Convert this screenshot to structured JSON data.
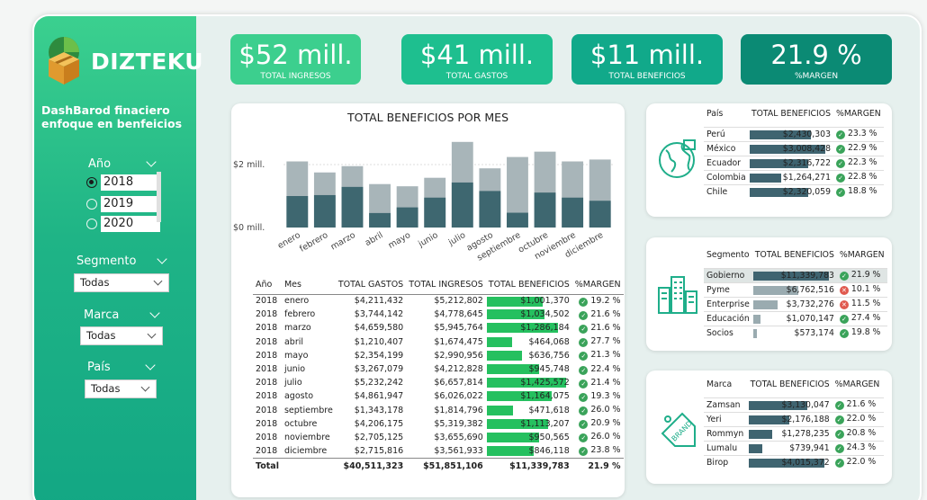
{
  "brand": {
    "name": "DIZTEKU",
    "tagline": "DashBarod finaciero enfoque en  benfeicios"
  },
  "filters": {
    "year": {
      "label": "Año",
      "options": [
        "2018",
        "2019",
        "2020"
      ],
      "selected": "2018"
    },
    "segment": {
      "label": "Segmento",
      "value": "Todas"
    },
    "brand": {
      "label": "Marca",
      "value": "Todas"
    },
    "country": {
      "label": "País",
      "value": "Todas"
    }
  },
  "kpis": [
    {
      "value": "$52 mill.",
      "label": "TOTAL INGRESOS",
      "color": "#3ccf8e"
    },
    {
      "value": "$41 mill.",
      "label": "TOTAL GASTOS",
      "color": "#1ebf8f"
    },
    {
      "value": "$11 mill.",
      "label": "TOTAL BENEFICIOS",
      "color": "#11a98a"
    },
    {
      "value": "21.9 %",
      "label": "%MARGEN",
      "color": "#0b8a74"
    }
  ],
  "chart_data": {
    "type": "bar",
    "title": "TOTAL BENEFICIOS POR MES",
    "categories": [
      "enero",
      "febrero",
      "marzo",
      "abril",
      "mayo",
      "junio",
      "julio",
      "agosto",
      "septiembre",
      "octubre",
      "noviembre",
      "diciembre"
    ],
    "series": [
      {
        "values": [
          1.0,
          1.03,
          1.29,
          0.46,
          0.64,
          0.95,
          1.43,
          1.16,
          0.47,
          1.11,
          0.95,
          0.85
        ]
      },
      {
        "values": [
          2.1,
          1.75,
          1.95,
          1.38,
          1.31,
          1.58,
          2.72,
          1.88,
          2.24,
          2.41,
          2.1,
          2.16
        ]
      }
    ],
    "yticks": [
      "$0 mill.",
      "$2 mill."
    ],
    "ylim": [
      0,
      2.8
    ],
    "colors": [
      "#3e6770",
      "#a8b5b9"
    ]
  },
  "month_table": {
    "headers": [
      "Año",
      "Mes",
      "TOTAL GASTOS",
      "TOTAL INGRESOS",
      "TOTAL BENEFICIOS",
      "%MARGEN"
    ],
    "rows": [
      [
        "2018",
        "enero",
        "$4,211,432",
        "$5,212,802",
        "$1,001,370",
        "19.2 %",
        1.00137
      ],
      [
        "2018",
        "febrero",
        "$3,744,142",
        "$4,778,645",
        "$1,034,502",
        "21.6 %",
        1.034502
      ],
      [
        "2018",
        "marzo",
        "$4,659,580",
        "$5,945,764",
        "$1,286,184",
        "21.6 %",
        1.286184
      ],
      [
        "2018",
        "abril",
        "$1,210,407",
        "$1,674,475",
        "$464,068",
        "27.7 %",
        0.464068
      ],
      [
        "2018",
        "mayo",
        "$2,354,199",
        "$2,990,956",
        "$636,756",
        "21.3 %",
        0.636756
      ],
      [
        "2018",
        "junio",
        "$3,267,079",
        "$4,212,828",
        "$945,748",
        "22.4 %",
        0.945748
      ],
      [
        "2018",
        "julio",
        "$5,232,242",
        "$6,657,814",
        "$1,425,572",
        "21.4 %",
        1.425572
      ],
      [
        "2018",
        "agosto",
        "$4,861,947",
        "$6,026,022",
        "$1,164,075",
        "19.3 %",
        1.164075
      ],
      [
        "2018",
        "septiembre",
        "$1,343,178",
        "$1,814,796",
        "$471,618",
        "26.0 %",
        0.471618
      ],
      [
        "2018",
        "octubre",
        "$4,206,175",
        "$5,319,382",
        "$1,113,207",
        "20.9 %",
        1.113207
      ],
      [
        "2018",
        "noviembre",
        "$2,705,125",
        "$3,655,690",
        "$950,565",
        "26.0 %",
        0.950565
      ],
      [
        "2018",
        "diciembre",
        "$2,715,816",
        "$3,561,933",
        "$846,118",
        "23.8 %",
        0.846118
      ]
    ],
    "total": [
      "Total",
      "$40,511,323",
      "$51,851,106",
      "$11,339,783",
      "21.9 %"
    ]
  },
  "country_table": {
    "headers": [
      "País",
      "TOTAL BENEFICIOS",
      "%MARGEN"
    ],
    "rows": [
      [
        "Perú",
        "$2,430,303",
        "23.3 %",
        2.430303,
        "ok"
      ],
      [
        "México",
        "$3,008,428",
        "22.9 %",
        3.008428,
        "ok"
      ],
      [
        "Ecuador",
        "$2,316,722",
        "22.3 %",
        2.316722,
        "ok"
      ],
      [
        "Colombia",
        "$1,264,271",
        "22.8 %",
        1.264271,
        "ok"
      ],
      [
        "Chile",
        "$2,320,059",
        "18.8 %",
        2.320059,
        "ok"
      ]
    ]
  },
  "segment_table": {
    "headers": [
      "Segmento",
      "TOTAL BENEFICIOS",
      "%MARGEN"
    ],
    "rows": [
      [
        "Gobierno",
        "$11,339,783",
        "21.9 %",
        11.339783,
        "ok"
      ],
      [
        "Pyme",
        "$6,762,516",
        "10.1 %",
        6.762516,
        "bad"
      ],
      [
        "Enterprise",
        "$3,732,276",
        "11.5 %",
        3.732276,
        "bad"
      ],
      [
        "Educación",
        "$1,070,147",
        "27.4 %",
        1.070147,
        "ok"
      ],
      [
        "Socios",
        "$573,174",
        "19.8 %",
        0.573174,
        "ok"
      ]
    ]
  },
  "brand_table": {
    "headers": [
      "Marca",
      "TOTAL BENEFICIOS",
      "%MARGEN"
    ],
    "rows": [
      [
        "Zamsan",
        "$3,130,047",
        "21.6 %",
        3.130047,
        "ok"
      ],
      [
        "Yeri",
        "$2,176,188",
        "22.0 %",
        2.176188,
        "ok"
      ],
      [
        "Rommyn",
        "$1,278,235",
        "20.8 %",
        1.278235,
        "ok"
      ],
      [
        "Lumalu",
        "$739,941",
        "24.3 %",
        0.739941,
        "ok"
      ],
      [
        "Birop",
        "$4,015,372",
        "22.0 %",
        4.015372,
        "ok"
      ]
    ]
  },
  "icons": {
    "country": "globe-icon",
    "segment": "buildings-icon",
    "brand": "brand-tag-icon",
    "logo": "box-logo-icon"
  }
}
